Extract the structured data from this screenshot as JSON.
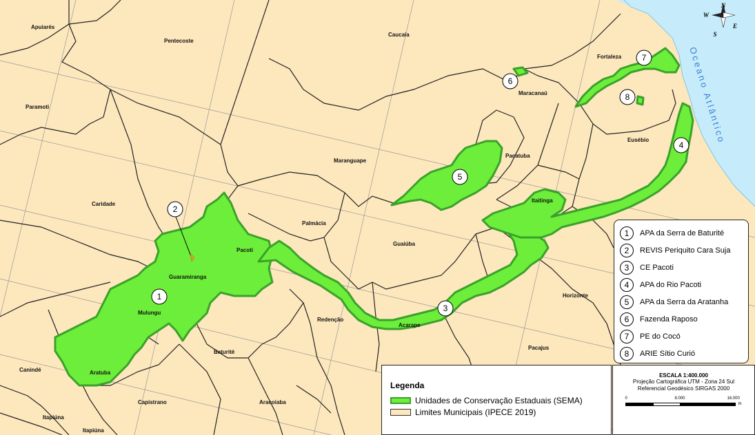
{
  "map": {
    "municipalities": [
      {
        "name": "Apuiarés"
      },
      {
        "name": "Pentecoste"
      },
      {
        "name": "Caucaia"
      },
      {
        "name": "Paramoti"
      },
      {
        "name": "Maranguape"
      },
      {
        "name": "Fortaleza"
      },
      {
        "name": "Maracanaú"
      },
      {
        "name": "Eusébio"
      },
      {
        "name": "Pacatuba"
      },
      {
        "name": "Caridade"
      },
      {
        "name": "Itaitinga"
      },
      {
        "name": "Palmácia"
      },
      {
        "name": "Pacoti"
      },
      {
        "name": "Guaiúba"
      },
      {
        "name": "Guaramiranga"
      },
      {
        "name": "Mulungu"
      },
      {
        "name": "Redenção"
      },
      {
        "name": "Horizonte"
      },
      {
        "name": "Acarape"
      },
      {
        "name": "Baturité"
      },
      {
        "name": "Pacajus"
      },
      {
        "name": "Canindé"
      },
      {
        "name": "Aratuba"
      },
      {
        "name": "Capistrano"
      },
      {
        "name": "Aracoiaba"
      },
      {
        "name": "Itapiúna"
      },
      {
        "name": "Itapiúna"
      }
    ],
    "ocean_label": "Oceano Atlântico",
    "markers": [
      "1",
      "2",
      "3",
      "4",
      "5",
      "6",
      "7",
      "8"
    ],
    "compass": {
      "n": "N",
      "s": "S",
      "e": "E",
      "w": "W"
    },
    "colors": {
      "background": "#fde7bd",
      "protected_area": "#6dee3a",
      "protected_border": "#3aa12a",
      "ocean": "#c6ecfb"
    }
  },
  "key": [
    {
      "num": "1",
      "label": "APA da Serra de Baturité"
    },
    {
      "num": "2",
      "label": "REVIS Periquito Cara Suja"
    },
    {
      "num": "3",
      "label": "CE Pacoti"
    },
    {
      "num": "4",
      "label": "APA do Rio Pacoti"
    },
    {
      "num": "5",
      "label": "APA da Serra da Aratanha"
    },
    {
      "num": "6",
      "label": "Fazenda Raposo"
    },
    {
      "num": "7",
      "label": "PE do Cocó"
    },
    {
      "num": "8",
      "label": "ARIE Sítio Curió"
    }
  ],
  "legend": {
    "title": "Legenda",
    "items": [
      {
        "label": "Unidades de Conservação Estaduais (SEMA)"
      },
      {
        "label": "Limites Municipais (IPECE 2019)"
      }
    ]
  },
  "scale": {
    "title": "ESCALA   1:400.000",
    "projection": "Projeção Cartográfica UTM - Zona 24 Sul",
    "datum": "Referencial Geodésico SIRGAS 2000",
    "ticks": [
      "0",
      "8.000",
      "16.000"
    ],
    "unit": "m"
  }
}
